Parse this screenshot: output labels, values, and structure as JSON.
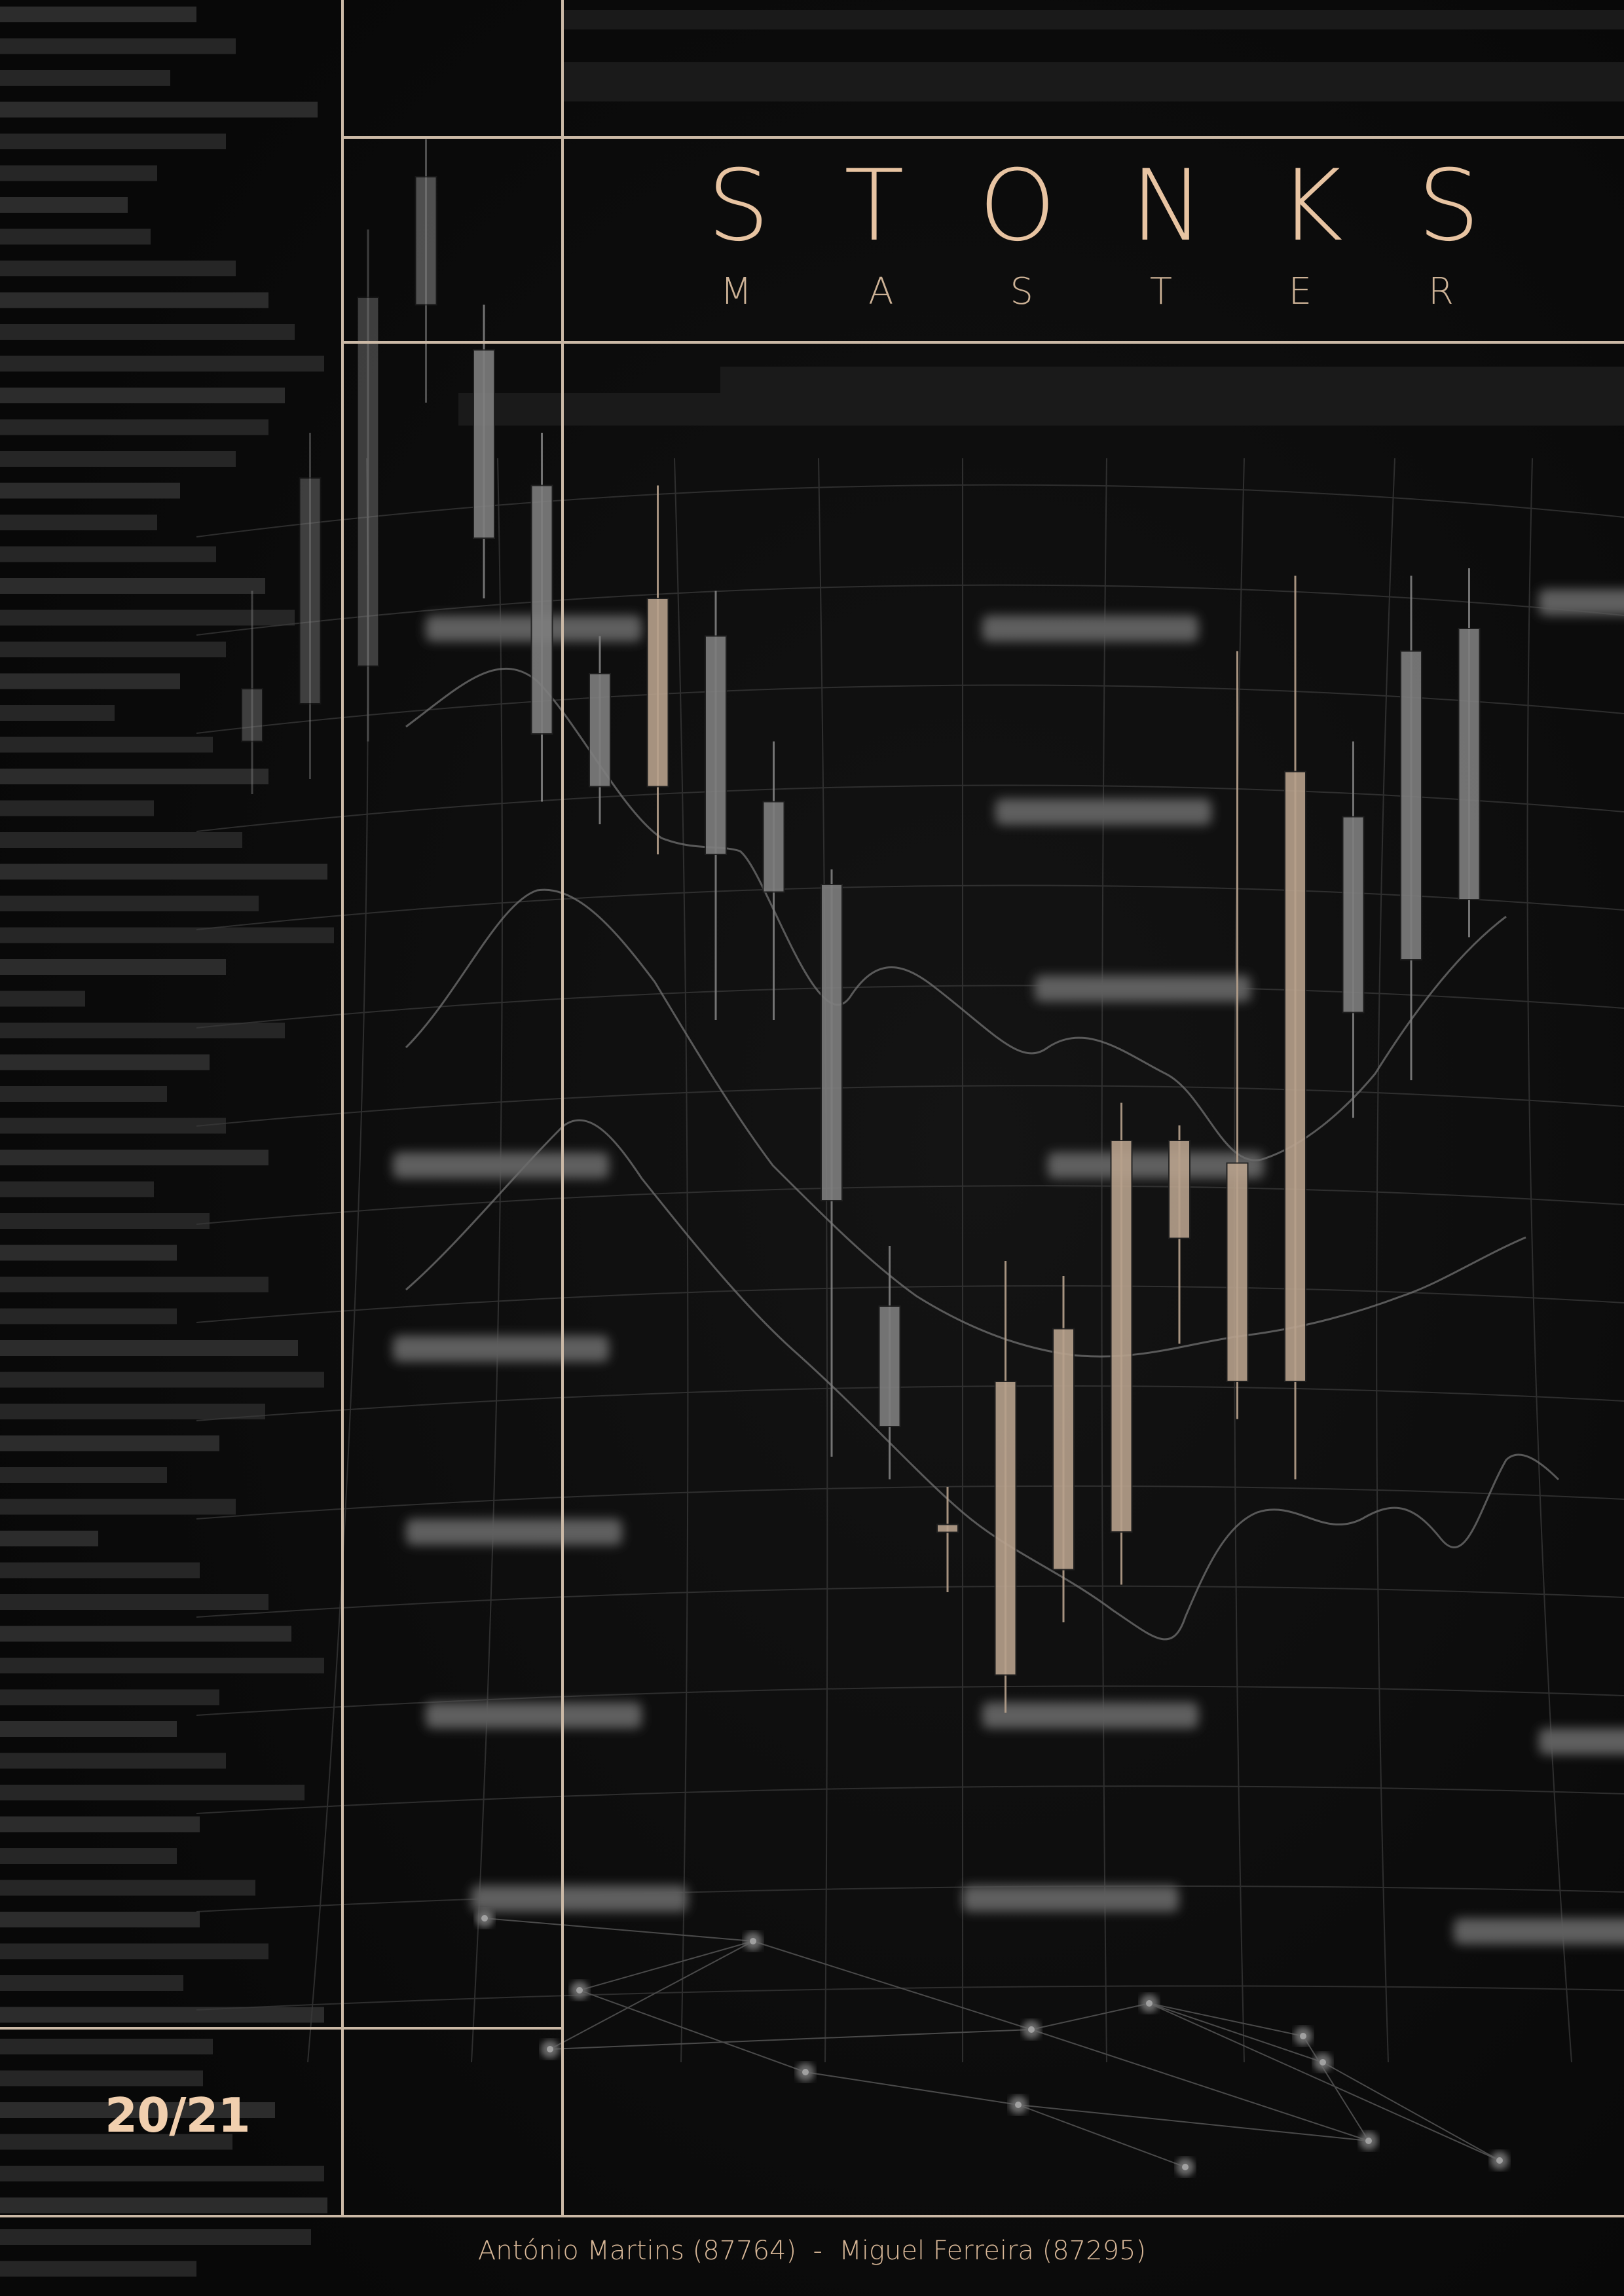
{
  "title": "S T O N K S",
  "title_letters": [
    "S",
    "T",
    "O",
    "N",
    "K",
    "S"
  ],
  "subtitle_letters": [
    "M",
    "A",
    "S",
    "T",
    "E",
    "R"
  ],
  "year": "20/21",
  "authors": "António Martins (87764)  -  Miguel Ferreira (87295)",
  "colors": {
    "background": "#0c0c0c",
    "accent": "#e8c4a2",
    "frame_line": "#cbb9a6",
    "bear_candle": "#7e7e7e",
    "bull_candle": "#b7a18c"
  },
  "chart_data": {
    "type": "candlestick",
    "candles": [
      {
        "open": 45,
        "close": 52,
        "high": 65,
        "low": 38,
        "trend": "down"
      },
      {
        "open": 50,
        "close": 80,
        "high": 86,
        "low": 40,
        "trend": "down"
      },
      {
        "open": 55,
        "close": 104,
        "high": 113,
        "low": 45,
        "trend": "down"
      },
      {
        "open": 103,
        "close": 120,
        "high": 125,
        "low": 90,
        "trend": "down"
      },
      {
        "open": 97,
        "close": 72,
        "high": 103,
        "low": 64,
        "trend": "down"
      },
      {
        "open": 79,
        "close": 46,
        "high": 86,
        "low": 37,
        "trend": "down"
      },
      {
        "open": 54,
        "close": 39,
        "high": 59,
        "low": 34,
        "trend": "down"
      },
      {
        "open": 64,
        "close": 39,
        "high": 79,
        "low": 30,
        "trend": "up"
      },
      {
        "open": 59,
        "close": 30,
        "high": 65,
        "low": 8,
        "trend": "down"
      },
      {
        "open": 37,
        "close": 25,
        "high": 45,
        "low": 8,
        "trend": "down"
      },
      {
        "open": 26,
        "close": -16,
        "high": 28,
        "low": -50,
        "trend": "down"
      },
      {
        "open": -30,
        "close": -46,
        "high": -22,
        "low": -53,
        "trend": "down"
      },
      {
        "open": -60,
        "close": -59,
        "high": -54,
        "low": -68,
        "trend": "up"
      },
      {
        "open": -79,
        "close": -40,
        "high": -24,
        "low": -84,
        "trend": "up"
      },
      {
        "open": -65,
        "close": -33,
        "high": -26,
        "low": -72,
        "trend": "up"
      },
      {
        "open": -60,
        "close": -8,
        "high": -3,
        "low": -67,
        "trend": "up"
      },
      {
        "open": -21,
        "close": -8,
        "high": -6,
        "low": -35,
        "trend": "up"
      },
      {
        "open": -40,
        "close": -11,
        "high": 57,
        "low": -45,
        "trend": "up"
      },
      {
        "open": -40,
        "close": 41,
        "high": 67,
        "low": -53,
        "trend": "up"
      },
      {
        "open": 9,
        "close": 35,
        "high": 45,
        "low": -5,
        "trend": "down"
      },
      {
        "open": 16,
        "close": 57,
        "high": 67,
        "low": 0,
        "trend": "down"
      },
      {
        "open": 24,
        "close": 60,
        "high": 68,
        "low": 19,
        "trend": "down"
      }
    ]
  }
}
